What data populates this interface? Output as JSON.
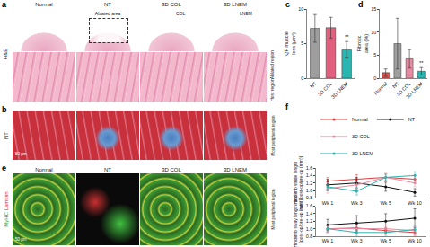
{
  "image_panels": [
    {
      "panel": "a",
      "row_label": "H&E",
      "columns": [
        "Normal",
        "NT",
        "3D COL",
        "3D LNEM"
      ],
      "labels": [
        "Ablated area",
        "COL",
        "LNEM"
      ],
      "region_labels": [
        "Ablated region",
        "Host region"
      ]
    },
    {
      "panel": "b",
      "row_label": "NT",
      "side_label": "Most peripheral region",
      "scale_bar": "50 μm"
    },
    {
      "panel": "e",
      "columns": [
        "Normal",
        "NT",
        "3D COL",
        "3D LNEM"
      ],
      "row_label": [
        "MyHC",
        "Laminin"
      ],
      "side_label": "Most peripheral region",
      "scale_bar": "50 μm"
    }
  ],
  "chart_data": [
    {
      "panel": "c",
      "type": "bar",
      "y_label": "QF muscle loss (μm²)",
      "categories": [
        "NT",
        "3D COL",
        "3D LNEM"
      ],
      "values": [
        7.2,
        7.3,
        4.1
      ],
      "errors": [
        2.0,
        1.5,
        1.2
      ],
      "colors": [
        "#9e9e9e",
        "#e0607e",
        "#2bb5b0"
      ],
      "ylim": [
        0,
        10
      ],
      "yticks": [
        0,
        5,
        10
      ],
      "grid": false,
      "annotations": [
        {
          "category": "3D LNEM",
          "text": "**"
        }
      ]
    },
    {
      "panel": "d",
      "type": "bar",
      "y_label": "Fibrotic area (%)",
      "categories": [
        "Normal",
        "NT",
        "3D COL",
        "3D LNEM"
      ],
      "values": [
        1.2,
        7.5,
        4.2,
        1.5
      ],
      "errors": [
        0.8,
        5.5,
        2.0,
        0.8
      ],
      "colors": [
        "#d9534f",
        "#9e9e9e",
        "#e88aa2",
        "#2bb5b0"
      ],
      "ylim": [
        0,
        15
      ],
      "yticks": [
        0,
        5,
        10,
        15
      ],
      "grid": false,
      "annotations": [
        {
          "category": "3D LNEM",
          "text": "**"
        }
      ]
    },
    {
      "panel": "f",
      "type": "line",
      "categories": [
        "Wk 1",
        "Wk 3",
        "Wk 5",
        "Wk 10"
      ],
      "legend": "top",
      "grid": false,
      "subplots": [
        {
          "y_label": "Hindlimb stride length ratio [post-op/pre-op (mm)]",
          "ylim": [
            0.8,
            1.6
          ],
          "yticks": [
            0.8,
            {
              "value": 1,
              "label": "1.0"
            },
            1.2,
            1.4,
            1.6
          ],
          "series": [
            {
              "name": "Normal",
              "color": "#e03c3c",
              "marker": "circle",
              "values": [
                1.25,
                1.3,
                1.35,
                1.3
              ],
              "errors": [
                0.1,
                0.12,
                0.1,
                0.1
              ]
            },
            {
              "name": "NT",
              "color": "#111111",
              "marker": "circle",
              "values": [
                1.15,
                1.2,
                1.1,
                0.95
              ],
              "errors": [
                0.15,
                0.15,
                0.12,
                0.1
              ]
            },
            {
              "name": "3D COL",
              "color": "#e88aa2",
              "marker": "circle",
              "values": [
                1.05,
                1.15,
                1.35,
                1.2
              ],
              "errors": [
                0.12,
                0.1,
                0.1,
                0.1
              ]
            },
            {
              "name": "3D LNEM",
              "color": "#2bb5b0",
              "marker": "circle",
              "values": [
                1.1,
                0.98,
                1.35,
                1.4
              ],
              "errors": [
                0.1,
                0.1,
                0.08,
                0.1
              ]
            }
          ]
        },
        {
          "y_label": "Hindlimb sway length ratio [post-op/pre-op (mm)]",
          "ylim": [
            0.8,
            1.6
          ],
          "yticks": [
            0.8,
            {
              "value": 1,
              "label": "1.0"
            },
            1.2,
            1.4,
            1.6
          ],
          "series": [
            {
              "name": "Normal",
              "color": "#e03c3c",
              "marker": "circle",
              "values": [
                1.0,
                1.02,
                0.95,
                0.9
              ],
              "errors": [
                0.1,
                0.1,
                0.08,
                0.08
              ]
            },
            {
              "name": "NT",
              "color": "#111111",
              "marker": "circle",
              "values": [
                1.1,
                1.15,
                1.2,
                1.28
              ],
              "errors": [
                0.15,
                0.2,
                0.2,
                0.25
              ]
            },
            {
              "name": "3D COL",
              "color": "#e88aa2",
              "marker": "circle",
              "values": [
                1.0,
                1.0,
                1.0,
                0.95
              ],
              "errors": [
                0.1,
                0.1,
                0.1,
                0.1
              ]
            },
            {
              "name": "3D LNEM",
              "color": "#2bb5b0",
              "marker": "circle",
              "values": [
                1.0,
                0.9,
                0.9,
                0.98
              ],
              "errors": [
                0.08,
                0.08,
                0.08,
                0.1
              ]
            }
          ]
        }
      ]
    }
  ]
}
